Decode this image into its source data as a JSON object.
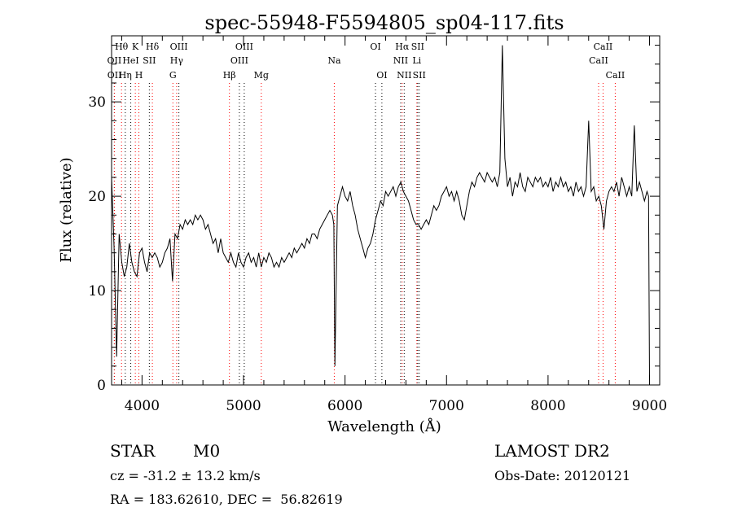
{
  "chart_data": {
    "type": "line",
    "title": "spec-55948-F5594805_sp04-117.fits",
    "xlabel": "Wavelength (Å)",
    "ylabel": "Flux (relative)",
    "xlim": [
      3700,
      9100
    ],
    "ylim": [
      0,
      37
    ],
    "x_ticks": [
      4000,
      5000,
      6000,
      7000,
      8000,
      9000
    ],
    "y_ticks": [
      0,
      10,
      20,
      30
    ],
    "grid": false,
    "line_color": "#000000",
    "marker_color": "#ff0000",
    "series": [
      {
        "x": [
          3700,
          3725,
          3750,
          3775,
          3800,
          3825,
          3850,
          3875,
          3900,
          3925,
          3950,
          3975,
          4000,
          4025,
          4050,
          4075,
          4100,
          4125,
          4150,
          4175,
          4200,
          4225,
          4250,
          4275,
          4300,
          4325,
          4350,
          4375,
          4400,
          4425,
          4450,
          4475,
          4500,
          4525,
          4550,
          4575,
          4600,
          4625,
          4650,
          4675,
          4700,
          4725,
          4750,
          4775,
          4800,
          4825,
          4850,
          4875,
          4900,
          4925,
          4950,
          4975,
          5000,
          5025,
          5050,
          5075,
          5100,
          5125,
          5150,
          5175,
          5200,
          5225,
          5250,
          5275,
          5300,
          5325,
          5350,
          5375,
          5400,
          5425,
          5450,
          5475,
          5500,
          5525,
          5550,
          5575,
          5600,
          5625,
          5650,
          5675,
          5700,
          5725,
          5750,
          5775,
          5800,
          5825,
          5850,
          5875,
          5890,
          5900,
          5925,
          5950,
          5975,
          6000,
          6025,
          6050,
          6075,
          6100,
          6125,
          6150,
          6175,
          6200,
          6225,
          6250,
          6275,
          6300,
          6325,
          6350,
          6375,
          6400,
          6425,
          6450,
          6475,
          6500,
          6525,
          6550,
          6575,
          6600,
          6625,
          6650,
          6675,
          6700,
          6725,
          6750,
          6775,
          6800,
          6825,
          6850,
          6875,
          6900,
          6925,
          6950,
          6975,
          7000,
          7025,
          7050,
          7075,
          7100,
          7125,
          7150,
          7175,
          7200,
          7225,
          7250,
          7275,
          7300,
          7325,
          7350,
          7375,
          7400,
          7425,
          7450,
          7475,
          7500,
          7525,
          7550,
          7575,
          7600,
          7625,
          7650,
          7675,
          7700,
          7725,
          7750,
          7775,
          7800,
          7825,
          7850,
          7875,
          7900,
          7925,
          7950,
          7975,
          8000,
          8025,
          8050,
          8075,
          8100,
          8125,
          8150,
          8175,
          8200,
          8225,
          8250,
          8275,
          8300,
          8325,
          8350,
          8375,
          8400,
          8425,
          8450,
          8475,
          8500,
          8525,
          8550,
          8575,
          8600,
          8625,
          8650,
          8675,
          8700,
          8725,
          8750,
          8775,
          8800,
          8825,
          8850,
          8875,
          8900,
          8925,
          8950,
          8975,
          8990,
          9000
        ],
        "y": [
          22.0,
          14.5,
          3.0,
          16.0,
          13.0,
          11.5,
          12.5,
          15.0,
          13.0,
          12.0,
          11.5,
          14.0,
          14.5,
          13.0,
          12.0,
          14.0,
          13.5,
          14.0,
          13.5,
          12.5,
          13.0,
          14.0,
          14.5,
          15.5,
          11.0,
          16.0,
          15.5,
          17.0,
          16.5,
          17.5,
          17.0,
          17.5,
          17.0,
          18.0,
          17.5,
          18.0,
          17.5,
          16.5,
          17.0,
          16.0,
          15.0,
          15.5,
          14.0,
          15.5,
          14.0,
          13.5,
          13.0,
          14.0,
          13.0,
          12.5,
          14.0,
          13.0,
          12.5,
          13.5,
          14.0,
          13.0,
          13.5,
          12.5,
          14.0,
          12.5,
          13.5,
          13.0,
          14.0,
          13.5,
          12.5,
          13.0,
          12.5,
          13.5,
          13.0,
          13.5,
          14.0,
          13.5,
          14.5,
          14.0,
          14.5,
          15.0,
          14.5,
          15.5,
          15.0,
          16.0,
          16.0,
          15.5,
          16.5,
          17.0,
          17.5,
          18.0,
          18.5,
          18.0,
          17.0,
          2.0,
          19.0,
          20.0,
          21.0,
          20.0,
          19.5,
          20.5,
          19.0,
          18.0,
          16.5,
          15.5,
          14.5,
          13.5,
          14.5,
          15.0,
          16.0,
          17.5,
          18.5,
          19.5,
          19.0,
          20.5,
          20.0,
          20.5,
          21.0,
          20.0,
          21.0,
          21.5,
          20.5,
          20.0,
          19.5,
          18.5,
          17.5,
          17.0,
          17.0,
          16.5,
          17.0,
          17.5,
          17.0,
          18.0,
          19.0,
          18.5,
          19.0,
          20.0,
          20.5,
          21.0,
          20.0,
          20.5,
          19.5,
          20.5,
          19.5,
          18.0,
          17.5,
          19.0,
          20.5,
          21.5,
          21.0,
          22.0,
          22.5,
          22.0,
          21.5,
          22.5,
          22.0,
          21.5,
          22.0,
          21.0,
          22.5,
          36.0,
          24.0,
          21.0,
          22.0,
          20.0,
          21.5,
          21.0,
          22.5,
          21.0,
          20.5,
          22.0,
          21.5,
          21.0,
          22.0,
          21.5,
          22.0,
          21.0,
          21.5,
          21.0,
          22.0,
          20.5,
          21.5,
          21.0,
          22.0,
          21.0,
          21.5,
          20.5,
          21.0,
          20.0,
          21.5,
          20.5,
          21.0,
          20.0,
          21.0,
          28.0,
          20.5,
          21.0,
          19.5,
          20.0,
          19.0,
          16.5,
          19.5,
          20.5,
          21.0,
          20.5,
          21.5,
          20.0,
          22.0,
          21.0,
          20.0,
          21.0,
          20.0,
          27.5,
          20.5,
          21.5,
          20.5,
          19.5,
          20.5,
          20.0,
          0.5
        ]
      }
    ],
    "line_markers": [
      {
        "label": "Hθ",
        "x": 3798,
        "row": 0,
        "color": "#ff0000"
      },
      {
        "label": "OII",
        "x": 3727,
        "row": 1,
        "color": "#000000"
      },
      {
        "label": "OII",
        "x": 3729,
        "row": 2,
        "color": "#ff0000"
      },
      {
        "label": "Hη",
        "x": 3835,
        "row": 2,
        "color": "#000000"
      },
      {
        "label": "HeI",
        "x": 3889,
        "row": 1,
        "color": "#000000"
      },
      {
        "label": "K",
        "x": 3934,
        "row": 0,
        "color": "#ff0000"
      },
      {
        "label": "H",
        "x": 3969,
        "row": 2,
        "color": "#ff0000"
      },
      {
        "label": "SII",
        "x": 4072,
        "row": 1,
        "color": "#000000"
      },
      {
        "label": "Hδ",
        "x": 4102,
        "row": 0,
        "color": "#ff0000"
      },
      {
        "label": "G",
        "x": 4304,
        "row": 2,
        "color": "#ff0000"
      },
      {
        "label": "Hγ",
        "x": 4341,
        "row": 1,
        "color": "#ff0000"
      },
      {
        "label": "OIII",
        "x": 4363,
        "row": 0,
        "color": "#000000"
      },
      {
        "label": "Hβ",
        "x": 4861,
        "row": 2,
        "color": "#ff0000"
      },
      {
        "label": "OIII",
        "x": 4959,
        "row": 1,
        "color": "#000000"
      },
      {
        "label": "OIII",
        "x": 5007,
        "row": 0,
        "color": "#000000"
      },
      {
        "label": "Mg",
        "x": 5175,
        "row": 2,
        "color": "#ff0000"
      },
      {
        "label": "Na",
        "x": 5894,
        "row": 1,
        "color": "#ff0000"
      },
      {
        "label": "OI",
        "x": 6300,
        "row": 0,
        "color": "#000000"
      },
      {
        "label": "OI",
        "x": 6363,
        "row": 2,
        "color": "#000000"
      },
      {
        "label": "NII",
        "x": 6548,
        "row": 1,
        "color": "#000000"
      },
      {
        "label": "Hα",
        "x": 6563,
        "row": 0,
        "color": "#ff0000"
      },
      {
        "label": "NII",
        "x": 6583,
        "row": 2,
        "color": "#000000"
      },
      {
        "label": "Li",
        "x": 6707,
        "row": 1,
        "color": "#ff0000"
      },
      {
        "label": "SII",
        "x": 6716,
        "row": 0,
        "color": "#000000"
      },
      {
        "label": "SII",
        "x": 6731,
        "row": 2,
        "color": "#000000"
      },
      {
        "label": "CaII",
        "x": 8498,
        "row": 1,
        "color": "#ff0000"
      },
      {
        "label": "CaII",
        "x": 8542,
        "row": 0,
        "color": "#ff0000"
      },
      {
        "label": "CaII",
        "x": 8662,
        "row": 2,
        "color": "#ff0000"
      }
    ]
  },
  "info": {
    "object_class": "STAR",
    "subclass": "M0",
    "survey": "LAMOST DR2",
    "cz": "cz = -31.2 ± 13.2 km/s",
    "obs_date": "Obs-Date: 20120121",
    "coords": "RA = 183.62610, DEC =  56.82619"
  }
}
